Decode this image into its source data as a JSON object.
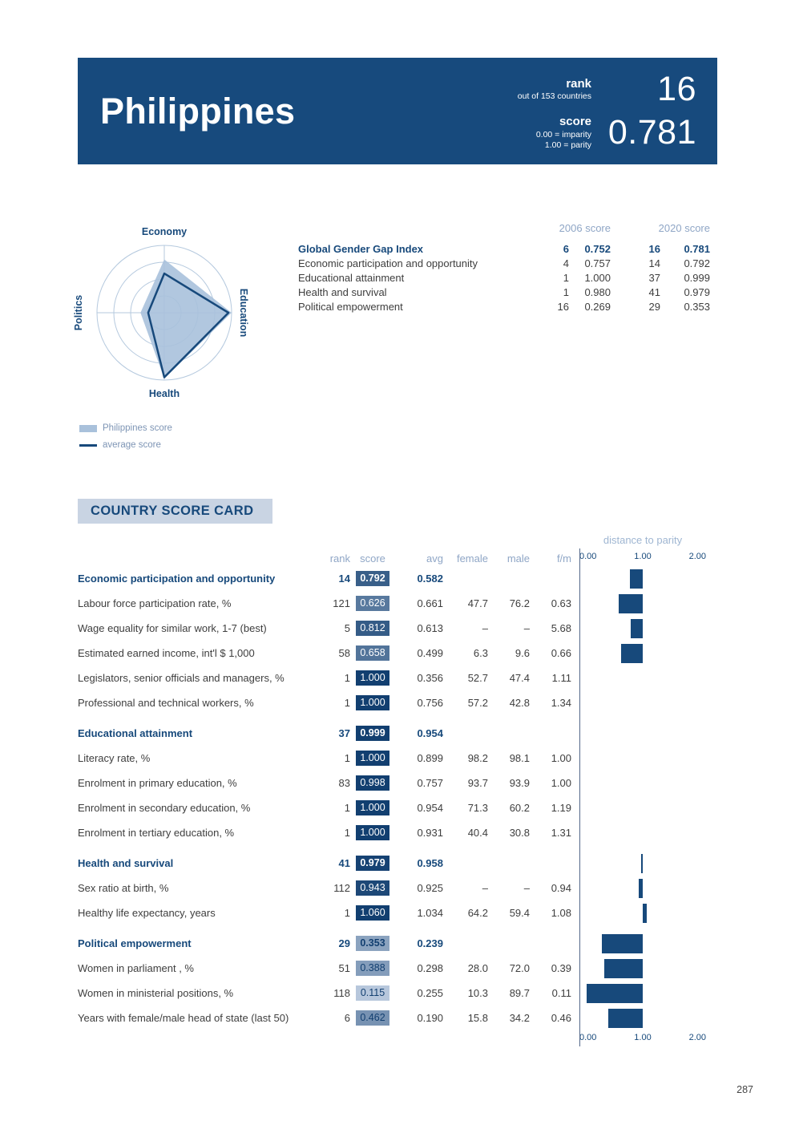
{
  "page": {
    "number": "287"
  },
  "header": {
    "country": "Philippines",
    "rank": {
      "label": "rank",
      "sub": "out of 153 countries",
      "value": "16"
    },
    "score": {
      "label": "score",
      "sub1": "0.00 = imparity",
      "sub2": "1.00 = parity",
      "value": "0.781"
    }
  },
  "index_table": {
    "col_2006": "2006 score",
    "col_2020": "2020 score",
    "rows": [
      {
        "label": "Global Gender Gap Index",
        "bold": true,
        "r2006": "6",
        "s2006": "0.752",
        "r2020": "16",
        "s2020": "0.781"
      },
      {
        "label": "Economic participation and opportunity",
        "bold": false,
        "r2006": "4",
        "s2006": "0.757",
        "r2020": "14",
        "s2020": "0.792"
      },
      {
        "label": "Educational attainment",
        "bold": false,
        "r2006": "1",
        "s2006": "1.000",
        "r2020": "37",
        "s2020": "0.999"
      },
      {
        "label": "Health and survival",
        "bold": false,
        "r2006": "1",
        "s2006": "0.980",
        "r2020": "41",
        "s2020": "0.979"
      },
      {
        "label": "Political empowerment",
        "bold": false,
        "r2006": "16",
        "s2006": "0.269",
        "r2020": "29",
        "s2020": "0.353"
      }
    ]
  },
  "legend": {
    "philippines": "Philippines score",
    "average": "average score"
  },
  "scorecard": {
    "title": "COUNTRY SCORE CARD",
    "distance_label": "distance to parity",
    "columns": {
      "rank": "rank",
      "score": "score",
      "avg": "avg",
      "female": "female",
      "male": "male",
      "fm": "f/m"
    },
    "axis_ticks": [
      "0.00",
      "1.00",
      "2.00"
    ],
    "rows": [
      {
        "type": "category",
        "label": "Economic participation and opportunity",
        "rank": "14",
        "score": "0.792",
        "avg": "0.582",
        "female": "",
        "male": "",
        "fm": ""
      },
      {
        "type": "indicator",
        "label": "Labour force participation rate, %",
        "rank": "121",
        "score": "0.626",
        "avg": "0.661",
        "female": "47.7",
        "male": "76.2",
        "fm": "0.63"
      },
      {
        "type": "indicator",
        "label": "Wage equality for similar work, 1-7 (best)",
        "rank": "5",
        "score": "0.812",
        "avg": "0.613",
        "female": "–",
        "male": "–",
        "fm": "5.68"
      },
      {
        "type": "indicator",
        "label": "Estimated earned income, int'l $ 1,000",
        "rank": "58",
        "score": "0.658",
        "avg": "0.499",
        "female": "6.3",
        "male": "9.6",
        "fm": "0.66"
      },
      {
        "type": "indicator",
        "label": "Legislators, senior officials and managers, %",
        "rank": "1",
        "score": "1.000",
        "avg": "0.356",
        "female": "52.7",
        "male": "47.4",
        "fm": "1.11"
      },
      {
        "type": "indicator",
        "label": "Professional and technical workers, %",
        "rank": "1",
        "score": "1.000",
        "avg": "0.756",
        "female": "57.2",
        "male": "42.8",
        "fm": "1.34"
      },
      {
        "type": "category",
        "label": "Educational attainment",
        "rank": "37",
        "score": "0.999",
        "avg": "0.954",
        "female": "",
        "male": "",
        "fm": ""
      },
      {
        "type": "indicator",
        "label": "Literacy rate, %",
        "rank": "1",
        "score": "1.000",
        "avg": "0.899",
        "female": "98.2",
        "male": "98.1",
        "fm": "1.00"
      },
      {
        "type": "indicator",
        "label": "Enrolment in primary education, %",
        "rank": "83",
        "score": "0.998",
        "avg": "0.757",
        "female": "93.7",
        "male": "93.9",
        "fm": "1.00"
      },
      {
        "type": "indicator",
        "label": "Enrolment in secondary education, %",
        "rank": "1",
        "score": "1.000",
        "avg": "0.954",
        "female": "71.3",
        "male": "60.2",
        "fm": "1.19"
      },
      {
        "type": "indicator",
        "label": "Enrolment in tertiary education, %",
        "rank": "1",
        "score": "1.000",
        "avg": "0.931",
        "female": "40.4",
        "male": "30.8",
        "fm": "1.31"
      },
      {
        "type": "category",
        "label": "Health and survival",
        "rank": "41",
        "score": "0.979",
        "avg": "0.958",
        "female": "",
        "male": "",
        "fm": ""
      },
      {
        "type": "indicator",
        "label": "Sex ratio at birth, %",
        "rank": "112",
        "score": "0.943",
        "avg": "0.925",
        "female": "–",
        "male": "–",
        "fm": "0.94"
      },
      {
        "type": "indicator",
        "label": "Healthy life expectancy, years",
        "rank": "1",
        "score": "1.060",
        "avg": "1.034",
        "female": "64.2",
        "male": "59.4",
        "fm": "1.08"
      },
      {
        "type": "category",
        "label": "Political empowerment",
        "rank": "29",
        "score": "0.353",
        "avg": "0.239",
        "female": "",
        "male": "",
        "fm": ""
      },
      {
        "type": "indicator",
        "label": "Women in parliament , %",
        "rank": "51",
        "score": "0.388",
        "avg": "0.298",
        "female": "28.0",
        "male": "72.0",
        "fm": "0.39"
      },
      {
        "type": "indicator",
        "label": "Women in ministerial positions, %",
        "rank": "118",
        "score": "0.115",
        "avg": "0.255",
        "female": "10.3",
        "male": "89.7",
        "fm": "0.11"
      },
      {
        "type": "indicator",
        "label": "Years with female/male head of state (last 50)",
        "rank": "6",
        "score": "0.462",
        "avg": "0.190",
        "female": "15.8",
        "male": "34.2",
        "fm": "0.46"
      }
    ]
  },
  "chart_data": [
    {
      "type": "radar",
      "axes": [
        "Economy",
        "Education",
        "Health",
        "Politics"
      ],
      "series": [
        {
          "name": "Philippines score",
          "values": [
            0.792,
            0.999,
            0.979,
            0.353
          ]
        },
        {
          "name": "average score",
          "values": [
            0.582,
            0.954,
            0.958,
            0.239
          ]
        }
      ],
      "range": [
        0,
        1
      ],
      "grid": "concentric-circles"
    },
    {
      "type": "bar",
      "title": "distance to parity",
      "orientation": "horizontal",
      "anchor": 1.0,
      "xlim": [
        0,
        2
      ],
      "x_ticks": [
        0.0,
        1.0,
        2.0
      ],
      "note": "bars span from each indicator score to parity (1.00)",
      "categories": [
        "Economic participation and opportunity",
        "Labour force participation rate, %",
        "Wage equality for similar work, 1-7 (best)",
        "Estimated earned income, int'l $ 1,000",
        "Legislators, senior officials and managers, %",
        "Professional and technical workers, %",
        "Educational attainment",
        "Literacy rate, %",
        "Enrolment in primary education, %",
        "Enrolment in secondary education, %",
        "Enrolment in tertiary education, %",
        "Health and survival",
        "Sex ratio at birth, %",
        "Healthy life expectancy, years",
        "Political empowerment",
        "Women in parliament , %",
        "Women in ministerial positions, %",
        "Years with female/male head of state (last 50)"
      ],
      "values": [
        0.792,
        0.626,
        0.812,
        0.658,
        1.0,
        1.0,
        0.999,
        1.0,
        0.998,
        1.0,
        1.0,
        0.979,
        0.943,
        1.06,
        0.353,
        0.388,
        0.115,
        0.462
      ]
    }
  ],
  "colors": {
    "banner": "#174A7D",
    "navy": "#17497B",
    "chip_low": "#CDD9EA",
    "chip_high": "#123F70",
    "radar_fill": "#A9C1DB",
    "radar_line": "#17497B",
    "radar_grid": "#B5C9DE",
    "header_muted": "#8FA6C6",
    "title_bg": "#C9D4E3",
    "bar": "#17497B"
  }
}
